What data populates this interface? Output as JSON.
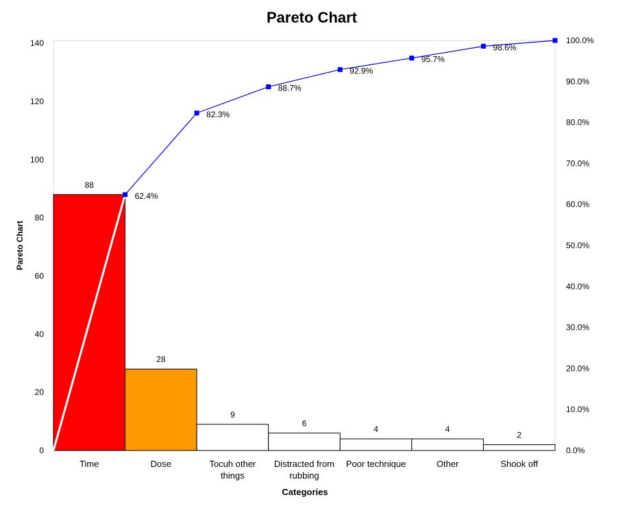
{
  "chart_data": {
    "type": "pareto",
    "title": "Pareto Chart",
    "xlabel": "Categories",
    "ylabel": "Pareto Chart",
    "categories": [
      "Time",
      "Dose",
      "Tocuh other things",
      "Distracted from rubbing",
      "Poor technique",
      "Other",
      "Shook off"
    ],
    "category_lines": [
      [
        "Time"
      ],
      [
        "Dose"
      ],
      [
        "Tocuh other",
        "things"
      ],
      [
        "Distracted from",
        "rubbing"
      ],
      [
        "Poor technique"
      ],
      [
        "Other"
      ],
      [
        "Shook off"
      ]
    ],
    "values": [
      88,
      28,
      9,
      6,
      4,
      4,
      2
    ],
    "value_labels": [
      "88",
      "28",
      "9",
      "6",
      "4",
      "4",
      "2"
    ],
    "bar_colors": [
      "#ff0000",
      "#ff9900",
      "#ffffff",
      "#ffffff",
      "#ffffff",
      "#ffffff",
      "#ffffff"
    ],
    "cumulative_percent": [
      62.4,
      82.3,
      88.7,
      92.9,
      95.7,
      98.6,
      100.0
    ],
    "cumulative_labels": [
      "62.4%",
      "82.3%",
      "88.7%",
      "92.9%",
      "95.7%",
      "98.6%",
      "100.0%"
    ],
    "y_left": {
      "min": 0,
      "max": 141,
      "ticks": [
        0,
        20,
        40,
        60,
        80,
        100,
        120,
        140
      ]
    },
    "y_right": {
      "min": 0,
      "max": 100,
      "ticks": [
        0,
        10,
        20,
        30,
        40,
        50,
        60,
        70,
        80,
        90,
        100
      ],
      "tick_labels": [
        "0.0%",
        "10.0%",
        "20.0%",
        "30.0%",
        "40.0%",
        "50.0%",
        "60.0%",
        "70.0%",
        "80.0%",
        "90.0%",
        "100.0%"
      ]
    },
    "cumulative_line_color": "#0000ff",
    "diagonal_line_color": "#ffffff",
    "grid": false,
    "legend": "none"
  }
}
